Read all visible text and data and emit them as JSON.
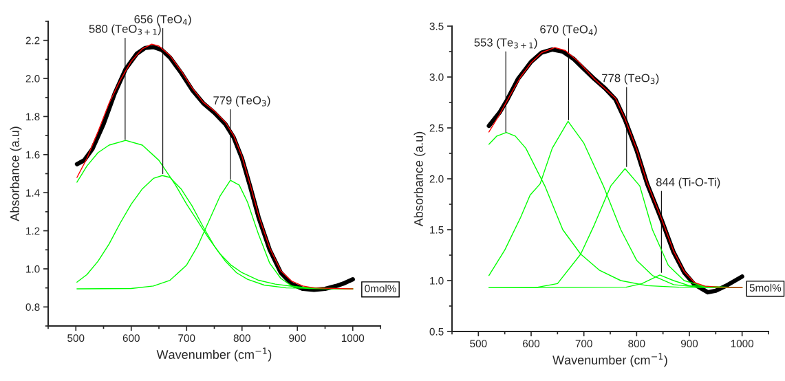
{
  "chart_data": [
    {
      "type": "line",
      "xlabel": "Wavenumber (cm$^{−1}$)",
      "ylabel": "Absorbance (a.u)",
      "xlim": [
        450,
        1050
      ],
      "ylim": [
        0.7,
        2.3
      ],
      "xticks": [
        500,
        600,
        700,
        800,
        900,
        1000
      ],
      "yticks": [
        {
          "value": 0.8,
          "label": "0.8"
        },
        {
          "value": 1.0,
          "label": "1.0"
        },
        {
          "value": 1.2,
          "label": "1.2"
        },
        {
          "value": 1.4,
          "label": "1.4"
        },
        {
          "value": 1.6,
          "label": "1.6"
        },
        {
          "value": 1.8,
          "label": "1.8"
        },
        {
          "value": 2.0,
          "label": "2.0"
        },
        {
          "value": 2.2,
          "label": "2.2"
        }
      ],
      "grid": false,
      "legend": false,
      "series": [
        {
          "color": "#000000",
          "x": [
            502,
            515,
            530,
            550,
            570,
            590,
            610,
            625,
            640,
            655,
            670,
            690,
            710,
            730,
            750,
            770,
            785,
            800,
            815,
            830,
            850,
            870,
            890,
            910,
            930,
            950,
            970,
            985,
            1000
          ],
          "values": [
            1.55,
            1.57,
            1.63,
            1.76,
            1.92,
            2.05,
            2.13,
            2.16,
            2.165,
            2.15,
            2.11,
            2.03,
            1.94,
            1.87,
            1.82,
            1.76,
            1.69,
            1.58,
            1.43,
            1.27,
            1.1,
            0.98,
            0.92,
            0.895,
            0.89,
            0.895,
            0.91,
            0.925,
            0.945
          ]
        },
        {
          "color": "#00ff00",
          "x": [
            502,
            520,
            540,
            560,
            590,
            620,
            650,
            680,
            700,
            720,
            740,
            760,
            780,
            800,
            830,
            860,
            900,
            950,
            1000
          ],
          "values": [
            1.455,
            1.54,
            1.61,
            1.65,
            1.675,
            1.65,
            1.57,
            1.44,
            1.34,
            1.25,
            1.16,
            1.08,
            1.02,
            0.98,
            0.94,
            0.92,
            0.905,
            0.898,
            0.895
          ]
        },
        {
          "color": "#00ff00",
          "x": [
            502,
            520,
            540,
            560,
            580,
            600,
            620,
            640,
            656,
            670,
            690,
            710,
            730,
            750,
            770,
            790,
            810,
            840,
            880,
            1000
          ],
          "values": [
            0.93,
            0.97,
            1.04,
            1.13,
            1.24,
            1.34,
            1.42,
            1.475,
            1.49,
            1.48,
            1.42,
            1.33,
            1.22,
            1.12,
            1.04,
            0.98,
            0.945,
            0.915,
            0.9,
            0.895
          ]
        },
        {
          "color": "#00ff00",
          "x": [
            502,
            600,
            640,
            670,
            700,
            720,
            740,
            760,
            779,
            795,
            810,
            830,
            850,
            870,
            890,
            920,
            1000
          ],
          "values": [
            0.895,
            0.897,
            0.91,
            0.94,
            1.02,
            1.12,
            1.25,
            1.38,
            1.465,
            1.44,
            1.35,
            1.18,
            1.03,
            0.95,
            0.91,
            0.897,
            0.895
          ]
        },
        {
          "color": "#ff0000",
          "x": [
            502,
            520,
            540,
            560,
            580,
            600,
            620,
            637,
            650,
            670,
            690,
            710,
            730,
            750,
            770,
            785,
            800,
            815,
            830,
            850,
            870,
            890,
            910,
            930,
            950,
            1000
          ],
          "values": [
            1.48,
            1.58,
            1.72,
            1.87,
            1.99,
            2.09,
            2.155,
            2.18,
            2.17,
            2.12,
            2.04,
            1.95,
            1.875,
            1.83,
            1.77,
            1.7,
            1.59,
            1.44,
            1.28,
            1.11,
            0.99,
            0.935,
            0.91,
            0.9,
            0.898,
            0.895
          ]
        }
      ],
      "annotations": [
        {
          "text": "580 (TeO$_{3+1}$)",
          "x": 589,
          "y": 1.68
        },
        {
          "text": "656 (TeO$_{4}$)",
          "x": 657,
          "y": 1.5
        },
        {
          "text": "779 (TeO$_{3}$)",
          "x": 779,
          "y": 1.47
        },
        "0mol%"
      ]
    },
    {
      "type": "line",
      "xlabel": "Wavenumber (cm$^{−1}$)",
      "ylabel": "Absorbance (a.u)",
      "xlim": [
        450,
        1050
      ],
      "ylim": [
        0.5,
        3.5
      ],
      "xticks": [
        500,
        600,
        700,
        800,
        900,
        1000
      ],
      "yticks": [
        {
          "value": 0.5,
          "label": "0.5"
        },
        {
          "value": 1.0,
          "label": "1.0"
        },
        {
          "value": 1.5,
          "label": "1.5"
        },
        {
          "value": 2.0,
          "label": "2.0"
        },
        {
          "value": 2.5,
          "label": "2.5"
        },
        {
          "value": 3.0,
          "label": "3.0"
        },
        {
          "value": 3.5,
          "label": "3.5"
        }
      ],
      "grid": false,
      "legend": false,
      "series": [
        {
          "color": "#000000",
          "x": [
            520,
            540,
            555,
            575,
            600,
            620,
            640,
            660,
            680,
            700,
            720,
            740,
            760,
            778,
            800,
            820,
            847,
            870,
            890,
            910,
            935,
            950,
            970,
            1000
          ],
          "values": [
            2.52,
            2.65,
            2.78,
            2.98,
            3.15,
            3.24,
            3.27,
            3.25,
            3.18,
            3.08,
            2.98,
            2.89,
            2.78,
            2.58,
            2.28,
            1.95,
            1.6,
            1.28,
            1.08,
            0.96,
            0.885,
            0.9,
            0.95,
            1.04
          ]
        },
        {
          "color": "#00ff00",
          "x": [
            520,
            535,
            553,
            570,
            590,
            626,
            660,
            694,
            730,
            770,
            820,
            880,
            1000
          ],
          "values": [
            2.34,
            2.42,
            2.455,
            2.42,
            2.3,
            1.93,
            1.5,
            1.26,
            1.1,
            1.0,
            0.95,
            0.935,
            0.93
          ]
        },
        {
          "color": "#00ff00",
          "x": [
            520,
            550,
            580,
            598,
            617,
            640,
            670,
            700,
            737,
            770,
            800,
            830,
            870,
            920,
            1000
          ],
          "values": [
            1.05,
            1.3,
            1.62,
            1.84,
            1.95,
            2.3,
            2.565,
            2.35,
            1.93,
            1.5,
            1.2,
            1.05,
            0.96,
            0.935,
            0.93
          ]
        },
        {
          "color": "#00ff00",
          "x": [
            520,
            607,
            650,
            694,
            720,
            751,
            778,
            806,
            830,
            860,
            890,
            930,
            1000
          ],
          "values": [
            0.93,
            0.93,
            0.97,
            1.26,
            1.55,
            1.93,
            2.1,
            1.93,
            1.5,
            1.15,
            1.0,
            0.94,
            0.93
          ]
        },
        {
          "color": "#00ff00",
          "x": [
            520,
            780,
            810,
            844,
            870,
            900,
            1000
          ],
          "values": [
            0.93,
            0.935,
            0.97,
            1.055,
            1.0,
            0.95,
            0.93
          ]
        },
        {
          "color": "#ff0000",
          "x": [
            520,
            540,
            560,
            580,
            600,
            620,
            645,
            665,
            690,
            720,
            760,
            778,
            800,
            820,
            847,
            870,
            890,
            910,
            930,
            960,
            1000
          ],
          "values": [
            2.46,
            2.63,
            2.82,
            3.0,
            3.14,
            3.24,
            3.29,
            3.26,
            3.15,
            2.98,
            2.79,
            2.59,
            2.29,
            1.96,
            1.61,
            1.29,
            1.09,
            0.98,
            0.945,
            0.935,
            0.93
          ]
        }
      ],
      "annotations": [
        {
          "text": "553 (Te$_{3+1}$)",
          "x": 552,
          "y": 2.46
        },
        {
          "text": "670 (TeO$_{4}$)",
          "x": 671,
          "y": 2.58
        },
        {
          "text": "778 (TeO$_{3}$)",
          "x": 781,
          "y": 2.12
        },
        {
          "text": "844 (Ti-O-Ti)",
          "x": 847,
          "y": 1.08
        },
        "5mol%"
      ]
    }
  ]
}
